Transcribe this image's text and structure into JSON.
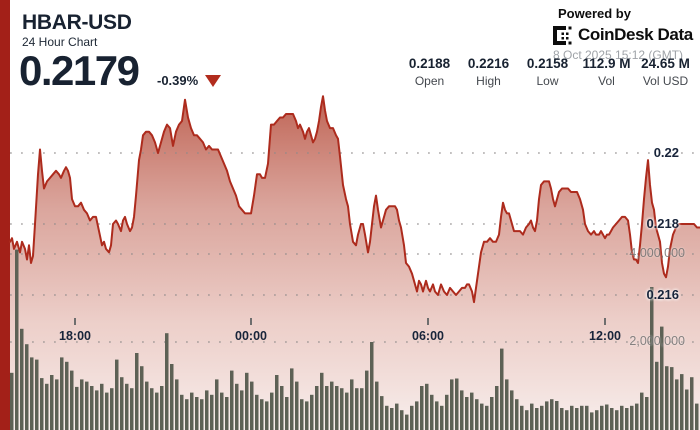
{
  "header": {
    "symbol": "HBAR-USD",
    "subtitle": "24 Hour Chart",
    "price": "0.2179",
    "change_pct": "-0.39%",
    "change_direction": "down"
  },
  "powered_by": {
    "label": "Powered by",
    "brand": "CoinDesk Data",
    "timestamp": "8 Oct 2025 15:12 (GMT)"
  },
  "stats": [
    {
      "value": "0.2188",
      "label": "Open"
    },
    {
      "value": "0.2216",
      "label": "High"
    },
    {
      "value": "0.2158",
      "label": "Low"
    },
    {
      "value": "112.9 M",
      "label": "Vol"
    },
    {
      "value": "24.65 M",
      "label": "Vol USD"
    }
  ],
  "colors": {
    "accent_stripe_red": "#a32018",
    "price_line_red": "#ad2b1d",
    "dark_navy_text": "#182231",
    "volume_bar_gray": "#5d6155",
    "muted_gray_label": "#9fa3a8"
  },
  "chart_data": {
    "type": "area",
    "title": "HBAR-USD 24 Hour Chart",
    "legend": "none",
    "grid": "dotted-horizontal",
    "x_ticks": [
      {
        "label": "18:00",
        "x": 75
      },
      {
        "label": "00:00",
        "x": 251
      },
      {
        "label": "06:00",
        "x": 428
      },
      {
        "label": "12:00",
        "x": 605
      }
    ],
    "price_ticks": [
      {
        "label": "0.22",
        "value": 0.22
      },
      {
        "label": "0.218",
        "value": 0.218
      },
      {
        "label": "0.216",
        "value": 0.216
      }
    ],
    "volume_ticks": [
      {
        "label": "4,000,000",
        "value_millions": 4
      },
      {
        "label": "2,000,000",
        "value_millions": 2
      }
    ],
    "price_ylim": [
      0.2148,
      0.2225
    ],
    "price_series": [
      [
        10,
        0.2175
      ],
      [
        12,
        0.2176
      ],
      [
        14,
        0.2173
      ],
      [
        17,
        0.2175
      ],
      [
        20,
        0.2172
      ],
      [
        22,
        0.2175
      ],
      [
        25,
        0.2173
      ],
      [
        27,
        0.217
      ],
      [
        29,
        0.2174
      ],
      [
        31,
        0.2169
      ],
      [
        33,
        0.2171
      ],
      [
        35,
        0.218
      ],
      [
        38,
        0.2194
      ],
      [
        40,
        0.2201
      ],
      [
        42,
        0.2195
      ],
      [
        44,
        0.219
      ],
      [
        47,
        0.2192
      ],
      [
        50,
        0.2193
      ],
      [
        53,
        0.2194
      ],
      [
        56,
        0.2195
      ],
      [
        59,
        0.2194
      ],
      [
        61,
        0.2193
      ],
      [
        64,
        0.2195
      ],
      [
        66,
        0.2196
      ],
      [
        68,
        0.2195
      ],
      [
        70,
        0.2193
      ],
      [
        72,
        0.2187
      ],
      [
        75,
        0.2185
      ],
      [
        78,
        0.2185
      ],
      [
        81,
        0.2186
      ],
      [
        84,
        0.2184
      ],
      [
        87,
        0.2183
      ],
      [
        90,
        0.2181
      ],
      [
        93,
        0.2182
      ],
      [
        96,
        0.2182
      ],
      [
        99,
        0.2178
      ],
      [
        102,
        0.2174
      ],
      [
        104,
        0.2175
      ],
      [
        106,
        0.2173
      ],
      [
        109,
        0.2172
      ],
      [
        111,
        0.2174
      ],
      [
        113,
        0.218
      ],
      [
        116,
        0.2181
      ],
      [
        118,
        0.218
      ],
      [
        121,
        0.2178
      ],
      [
        123,
        0.2181
      ],
      [
        125,
        0.2182
      ],
      [
        127,
        0.218
      ],
      [
        130,
        0.2178
      ],
      [
        132,
        0.2179
      ],
      [
        134,
        0.2182
      ],
      [
        136,
        0.2188
      ],
      [
        139,
        0.2198
      ],
      [
        141,
        0.2201
      ],
      [
        143,
        0.2205
      ],
      [
        146,
        0.2206
      ],
      [
        149,
        0.2206
      ],
      [
        152,
        0.2205
      ],
      [
        155,
        0.2203
      ],
      [
        158,
        0.22
      ],
      [
        161,
        0.2203
      ],
      [
        164,
        0.2206
      ],
      [
        167,
        0.2208
      ],
      [
        170,
        0.2207
      ],
      [
        173,
        0.2202
      ],
      [
        176,
        0.2206
      ],
      [
        179,
        0.2208
      ],
      [
        182,
        0.2209
      ],
      [
        185,
        0.2215
      ],
      [
        188,
        0.221
      ],
      [
        191,
        0.2207
      ],
      [
        194,
        0.2205
      ],
      [
        197,
        0.2205
      ],
      [
        200,
        0.2204
      ],
      [
        203,
        0.2203
      ],
      [
        206,
        0.2201
      ],
      [
        209,
        0.2202
      ],
      [
        212,
        0.2201
      ],
      [
        215,
        0.2201
      ],
      [
        218,
        0.2201
      ],
      [
        221,
        0.2199
      ],
      [
        224,
        0.2197
      ],
      [
        227,
        0.2195
      ],
      [
        230,
        0.2192
      ],
      [
        233,
        0.219
      ],
      [
        236,
        0.2188
      ],
      [
        239,
        0.2185
      ],
      [
        242,
        0.2184
      ],
      [
        245,
        0.2183
      ],
      [
        248,
        0.2183
      ],
      [
        251,
        0.2183
      ],
      [
        254,
        0.2188
      ],
      [
        257,
        0.2194
      ],
      [
        260,
        0.2194
      ],
      [
        262,
        0.2193
      ],
      [
        265,
        0.2193
      ],
      [
        268,
        0.2197
      ],
      [
        271,
        0.2208
      ],
      [
        274,
        0.2208
      ],
      [
        277,
        0.2209
      ],
      [
        280,
        0.221
      ],
      [
        283,
        0.221
      ],
      [
        286,
        0.2211
      ],
      [
        290,
        0.2211
      ],
      [
        293,
        0.2211
      ],
      [
        296,
        0.2209
      ],
      [
        298,
        0.2207
      ],
      [
        300,
        0.2208
      ],
      [
        303,
        0.2206
      ],
      [
        305,
        0.2204
      ],
      [
        307,
        0.2206
      ],
      [
        309,
        0.2207
      ],
      [
        311,
        0.2205
      ],
      [
        313,
        0.2203
      ],
      [
        315,
        0.2204
      ],
      [
        317,
        0.2206
      ],
      [
        319,
        0.2209
      ],
      [
        321,
        0.2213
      ],
      [
        323,
        0.2216
      ],
      [
        325,
        0.2212
      ],
      [
        327,
        0.2209
      ],
      [
        330,
        0.2207
      ],
      [
        333,
        0.2207
      ],
      [
        336,
        0.2205
      ],
      [
        338,
        0.2204
      ],
      [
        340,
        0.2199
      ],
      [
        343,
        0.2191
      ],
      [
        346,
        0.2187
      ],
      [
        348,
        0.2185
      ],
      [
        350,
        0.218
      ],
      [
        353,
        0.2175
      ],
      [
        356,
        0.2174
      ],
      [
        358,
        0.2177
      ],
      [
        361,
        0.218
      ],
      [
        363,
        0.218
      ],
      [
        365,
        0.2177
      ],
      [
        368,
        0.2172
      ],
      [
        370,
        0.2175
      ],
      [
        372,
        0.218
      ],
      [
        374,
        0.2185
      ],
      [
        376,
        0.2188
      ],
      [
        378,
        0.2184
      ],
      [
        381,
        0.2179
      ],
      [
        383,
        0.2181
      ],
      [
        386,
        0.2184
      ],
      [
        389,
        0.2185
      ],
      [
        392,
        0.2185
      ],
      [
        395,
        0.2185
      ],
      [
        397,
        0.2184
      ],
      [
        399,
        0.2181
      ],
      [
        401,
        0.2179
      ],
      [
        404,
        0.2174
      ],
      [
        406,
        0.2169
      ],
      [
        409,
        0.2168
      ],
      [
        412,
        0.2166
      ],
      [
        414,
        0.2164
      ],
      [
        417,
        0.2161
      ],
      [
        419,
        0.2164
      ],
      [
        421,
        0.2163
      ],
      [
        423,
        0.2161
      ],
      [
        426,
        0.2164
      ],
      [
        428,
        0.2162
      ],
      [
        430,
        0.2161
      ],
      [
        433,
        0.2163
      ],
      [
        435,
        0.2161
      ],
      [
        438,
        0.216
      ],
      [
        441,
        0.2163
      ],
      [
        444,
        0.2161
      ],
      [
        447,
        0.216
      ],
      [
        450,
        0.2162
      ],
      [
        453,
        0.2161
      ],
      [
        456,
        0.216
      ],
      [
        459,
        0.2161
      ],
      [
        462,
        0.2162
      ],
      [
        465,
        0.2162
      ],
      [
        467,
        0.2163
      ],
      [
        469,
        0.2163
      ],
      [
        472,
        0.2161
      ],
      [
        474,
        0.2158
      ],
      [
        477,
        0.2164
      ],
      [
        479,
        0.2168
      ],
      [
        481,
        0.2172
      ],
      [
        484,
        0.2175
      ],
      [
        487,
        0.2175
      ],
      [
        490,
        0.2176
      ],
      [
        493,
        0.2175
      ],
      [
        496,
        0.2175
      ],
      [
        499,
        0.2177
      ],
      [
        501,
        0.2182
      ],
      [
        503,
        0.2186
      ],
      [
        505,
        0.2184
      ],
      [
        507,
        0.2183
      ],
      [
        509,
        0.2183
      ],
      [
        512,
        0.218
      ],
      [
        514,
        0.2178
      ],
      [
        517,
        0.2178
      ],
      [
        520,
        0.2178
      ],
      [
        523,
        0.2177
      ],
      [
        526,
        0.2179
      ],
      [
        529,
        0.218
      ],
      [
        531,
        0.2181
      ],
      [
        533,
        0.2179
      ],
      [
        535,
        0.2178
      ],
      [
        537,
        0.2181
      ],
      [
        539,
        0.2187
      ],
      [
        541,
        0.2191
      ],
      [
        544,
        0.2192
      ],
      [
        547,
        0.2192
      ],
      [
        549,
        0.2192
      ],
      [
        551,
        0.219
      ],
      [
        553,
        0.2187
      ],
      [
        555,
        0.2185
      ],
      [
        557,
        0.2187
      ],
      [
        559,
        0.2189
      ],
      [
        562,
        0.219
      ],
      [
        565,
        0.219
      ],
      [
        568,
        0.219
      ],
      [
        571,
        0.2189
      ],
      [
        574,
        0.2189
      ],
      [
        577,
        0.2189
      ],
      [
        580,
        0.2187
      ],
      [
        583,
        0.2184
      ],
      [
        585,
        0.218
      ],
      [
        588,
        0.2178
      ],
      [
        591,
        0.2177
      ],
      [
        594,
        0.2178
      ],
      [
        596,
        0.2177
      ],
      [
        599,
        0.2177
      ],
      [
        601,
        0.2178
      ],
      [
        603,
        0.2177
      ],
      [
        605,
        0.2176
      ],
      [
        607,
        0.2177
      ],
      [
        609,
        0.2177
      ],
      [
        611,
        0.2178
      ],
      [
        613,
        0.2179
      ],
      [
        616,
        0.218
      ],
      [
        619,
        0.2181
      ],
      [
        622,
        0.2182
      ],
      [
        625,
        0.2182
      ],
      [
        628,
        0.2181
      ],
      [
        630,
        0.2177
      ],
      [
        632,
        0.2172
      ],
      [
        634,
        0.217
      ],
      [
        636,
        0.217
      ],
      [
        638,
        0.2169
      ],
      [
        640,
        0.2174
      ],
      [
        642,
        0.218
      ],
      [
        644,
        0.2187
      ],
      [
        646,
        0.2193
      ],
      [
        648,
        0.2198
      ],
      [
        650,
        0.2191
      ],
      [
        652,
        0.2186
      ],
      [
        654,
        0.2184
      ],
      [
        656,
        0.2179
      ],
      [
        658,
        0.2177
      ],
      [
        660,
        0.2175
      ],
      [
        662,
        0.2169
      ],
      [
        664,
        0.2166
      ],
      [
        666,
        0.2165
      ],
      [
        668,
        0.2168
      ],
      [
        670,
        0.2173
      ],
      [
        673,
        0.2177
      ],
      [
        676,
        0.2179
      ],
      [
        679,
        0.218
      ],
      [
        682,
        0.218
      ],
      [
        685,
        0.218
      ],
      [
        688,
        0.218
      ],
      [
        691,
        0.218
      ],
      [
        694,
        0.218
      ],
      [
        697,
        0.2179
      ],
      [
        700,
        0.2179
      ]
    ],
    "volume_series_millions": [
      1.3,
      4.1,
      2.3,
      1.95,
      1.65,
      1.6,
      1.18,
      1.05,
      1.25,
      1.15,
      1.65,
      1.55,
      1.35,
      0.98,
      1.15,
      1.1,
      1.0,
      0.9,
      1.05,
      0.85,
      0.95,
      1.6,
      1.2,
      1.05,
      0.95,
      1.75,
      1.45,
      1.1,
      0.95,
      0.85,
      1.0,
      2.2,
      1.5,
      1.15,
      0.8,
      0.7,
      0.85,
      0.75,
      0.7,
      0.9,
      0.8,
      1.15,
      0.85,
      0.75,
      1.35,
      1.05,
      0.9,
      1.3,
      1.1,
      0.8,
      0.7,
      0.65,
      0.85,
      1.25,
      1.0,
      0.75,
      1.4,
      1.1,
      0.7,
      0.65,
      0.8,
      1.0,
      1.3,
      1.0,
      1.1,
      1.0,
      0.95,
      0.85,
      1.15,
      0.95,
      0.95,
      1.35,
      2.0,
      1.1,
      0.77,
      0.55,
      0.5,
      0.6,
      0.45,
      0.35,
      0.55,
      0.65,
      1.0,
      1.05,
      0.8,
      0.65,
      0.55,
      0.8,
      1.15,
      1.17,
      0.9,
      0.75,
      0.85,
      0.7,
      0.6,
      0.55,
      0.75,
      1.0,
      1.85,
      1.15,
      0.9,
      0.7,
      0.55,
      0.45,
      0.6,
      0.5,
      0.55,
      0.65,
      0.7,
      0.66,
      0.5,
      0.45,
      0.55,
      0.5,
      0.55,
      0.55,
      0.4,
      0.45,
      0.55,
      0.58,
      0.5,
      0.45,
      0.55,
      0.5,
      0.55,
      0.6,
      0.85,
      0.75,
      3.25,
      1.55,
      2.35,
      1.45,
      1.43,
      1.15,
      1.27,
      0.92,
      1.2,
      0.6
    ]
  }
}
